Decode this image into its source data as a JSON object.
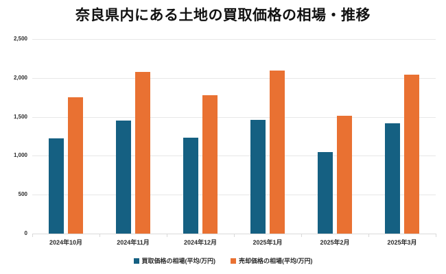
{
  "title": "奈良県内にある土地の買取価格の相場・推移",
  "colors": {
    "buy_series": "#156082",
    "sell_series": "#E97132",
    "gridline": "#E7E7E7",
    "axis_line": "#D9D9D9",
    "label_text": "#2B2B2B",
    "title_text": "#111111",
    "background": "#FFFFFF"
  },
  "y_axis": {
    "ticks": [
      "0",
      "500",
      "1,000",
      "1,500",
      "2,000",
      "2,500"
    ],
    "max": 2500
  },
  "legend": [
    {
      "label": "買取価格の相場(平均/万円)",
      "color": "#156082"
    },
    {
      "label": "売却価格の相場(平均/万円)",
      "color": "#E97132"
    }
  ],
  "chart_data": {
    "type": "bar",
    "title": "奈良県内にある土地の買取価格の相場・推移",
    "categories": [
      "2024年10月",
      "2024年11月",
      "2024年12月",
      "2025年1月",
      "2025年2月",
      "2025年3月"
    ],
    "series": [
      {
        "name": "買取価格の相場(平均/万円)",
        "color": "#156082",
        "values": [
          1225,
          1455,
          1235,
          1460,
          1050,
          1420
        ]
      },
      {
        "name": "売却価格の相場(平均/万円)",
        "color": "#E97132",
        "values": [
          1750,
          2075,
          1775,
          2095,
          1510,
          2040
        ]
      }
    ],
    "xlabel": "",
    "ylabel": "",
    "ylim": [
      0,
      2500
    ],
    "grid": true,
    "legend_position": "bottom"
  }
}
